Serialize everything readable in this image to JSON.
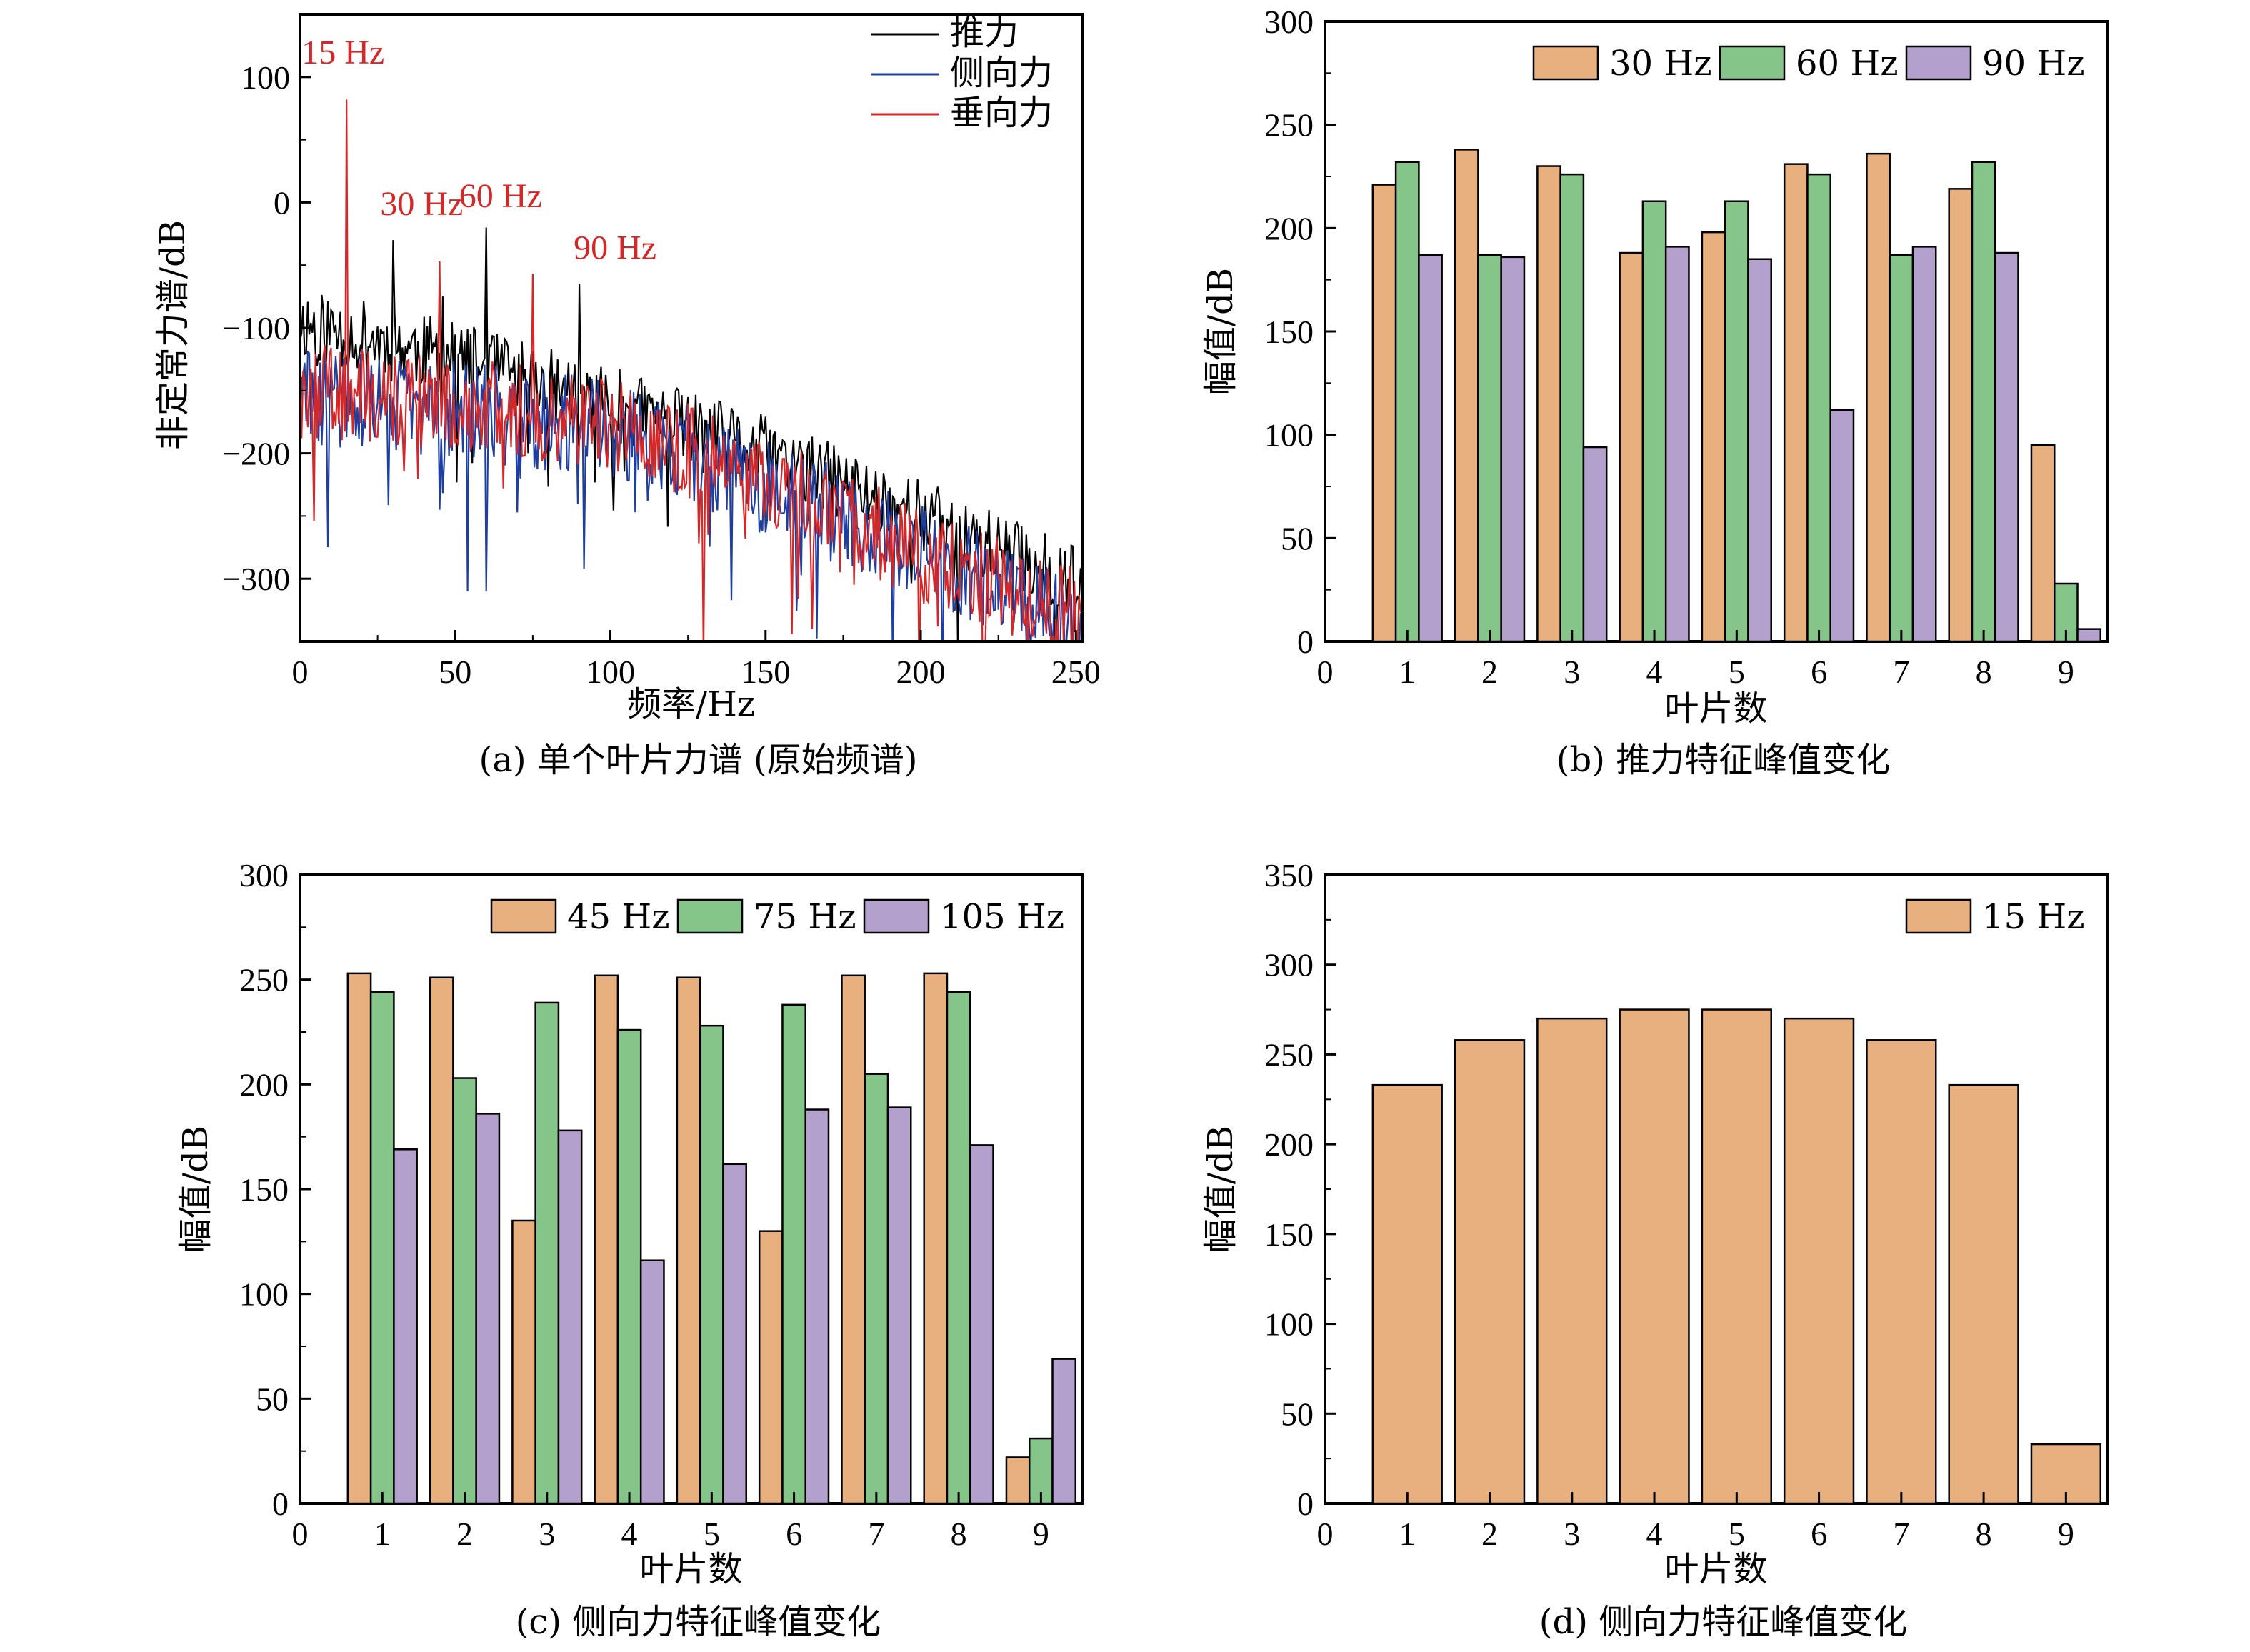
{
  "colors": {
    "bar_orange": "#E8B07E",
    "bar_green": "#86C58A",
    "bar_purple": "#B3A0CD",
    "line_black": "#000000",
    "line_blue": "#1F3FA0",
    "line_red": "#D62728",
    "annotation_red": "#D62728"
  },
  "chart_data": [
    {
      "type": "line",
      "caption": "(a) 单个叶片力谱 (原始频谱)",
      "xlabel": "频率/Hz",
      "ylabel": "非定常力谱/dB",
      "xlim": [
        0,
        252
      ],
      "ylim": [
        -350,
        150
      ],
      "xticks": [
        0,
        50,
        100,
        150,
        200,
        250
      ],
      "yticks": [
        100,
        0,
        -100,
        -200,
        -300
      ],
      "ytick_labels": [
        "100",
        "0",
        "−100",
        "−200",
        "−300"
      ],
      "legend_position": "top-right",
      "annotations": [
        {
          "text": "15 Hz",
          "x": 15,
          "y": 105
        },
        {
          "text": "30 Hz",
          "x": 30,
          "y": -10
        },
        {
          "text": "60 Hz",
          "x": 60,
          "y": -5
        },
        {
          "text": "90 Hz",
          "x": 90,
          "y": -45
        }
      ],
      "series": [
        {
          "name": "推力",
          "color": "#000000",
          "base": [
            [
              0,
              -95
            ],
            [
              50,
              -125
            ],
            [
              100,
              -160
            ],
            [
              150,
              -200
            ],
            [
              200,
              -250
            ],
            [
              252,
              -305
            ]
          ],
          "noise": 30,
          "seed": 11,
          "peaks": [
            [
              30,
              -30
            ],
            [
              60,
              -20
            ],
            [
              90,
              -65
            ],
            [
              46,
              -75
            ]
          ]
        },
        {
          "name": "侧向力",
          "color": "#1F3FA0",
          "base": [
            [
              0,
              -155
            ],
            [
              50,
              -165
            ],
            [
              100,
              -180
            ],
            [
              150,
              -225
            ],
            [
              200,
              -280
            ],
            [
              252,
              -330
            ]
          ],
          "noise": 40,
          "seed": 29,
          "peaks": [
            [
              54,
              -310
            ],
            [
              60,
              -310
            ],
            [
              45,
              -245
            ]
          ]
        },
        {
          "name": "垂向力",
          "color": "#D62728",
          "base": [
            [
              0,
              -150
            ],
            [
              50,
              -160
            ],
            [
              100,
              -175
            ],
            [
              150,
              -220
            ],
            [
              200,
              -280
            ],
            [
              252,
              -330
            ]
          ],
          "noise": 38,
          "seed": 47,
          "peaks": [
            [
              15,
              82
            ],
            [
              45,
              -47
            ],
            [
              75,
              -57
            ],
            [
              130,
              -360
            ],
            [
              165,
              -340
            ]
          ]
        }
      ]
    },
    {
      "type": "bar",
      "caption": "(b) 推力特征峰值变化",
      "xlabel": "叶片数",
      "ylabel": "幅值/dB",
      "categories": [
        "1",
        "2",
        "3",
        "4",
        "5",
        "6",
        "7",
        "8",
        "9"
      ],
      "xticks": [
        "0",
        "1",
        "2",
        "3",
        "4",
        "5",
        "6",
        "7",
        "8",
        "9"
      ],
      "ylim": [
        0,
        300
      ],
      "yticks": [
        0,
        50,
        100,
        150,
        200,
        250,
        300
      ],
      "legend_position": "top-right",
      "series": [
        {
          "name": "30 Hz",
          "color": "#E8B07E",
          "values": [
            221,
            238,
            230,
            188,
            198,
            231,
            236,
            219,
            95
          ]
        },
        {
          "name": "60 Hz",
          "color": "#86C58A",
          "values": [
            232,
            187,
            226,
            213,
            213,
            226,
            187,
            232,
            28
          ]
        },
        {
          "name": "90 Hz",
          "color": "#B3A0CD",
          "values": [
            187,
            186,
            94,
            191,
            185,
            112,
            191,
            188,
            6
          ]
        }
      ]
    },
    {
      "type": "bar",
      "caption": "(c) 侧向力特征峰值变化",
      "xlabel": "叶片数",
      "ylabel": "幅值/dB",
      "categories": [
        "1",
        "2",
        "3",
        "4",
        "5",
        "6",
        "7",
        "8",
        "9"
      ],
      "xticks": [
        "0",
        "1",
        "2",
        "3",
        "4",
        "5",
        "6",
        "7",
        "8",
        "9"
      ],
      "ylim": [
        0,
        300
      ],
      "yticks": [
        0,
        50,
        100,
        150,
        200,
        250,
        300
      ],
      "legend_position": "top-right",
      "series": [
        {
          "name": "45 Hz",
          "color": "#E8B07E",
          "values": [
            253,
            251,
            135,
            252,
            251,
            130,
            252,
            253,
            22
          ]
        },
        {
          "name": "75 Hz",
          "color": "#86C58A",
          "values": [
            244,
            203,
            239,
            226,
            228,
            238,
            205,
            244,
            31
          ]
        },
        {
          "name": "105 Hz",
          "color": "#B3A0CD",
          "values": [
            169,
            186,
            178,
            116,
            162,
            188,
            189,
            171,
            69
          ]
        }
      ]
    },
    {
      "type": "bar",
      "caption": "(d) 侧向力特征峰值变化",
      "xlabel": "叶片数",
      "ylabel": "幅值/dB",
      "categories": [
        "1",
        "2",
        "3",
        "4",
        "5",
        "6",
        "7",
        "8",
        "9"
      ],
      "xticks": [
        "0",
        "1",
        "2",
        "3",
        "4",
        "5",
        "6",
        "7",
        "8",
        "9"
      ],
      "ylim": [
        0,
        350
      ],
      "yticks": [
        0,
        50,
        100,
        150,
        200,
        250,
        300,
        350
      ],
      "legend_position": "top-right",
      "series": [
        {
          "name": "15 Hz",
          "color": "#E8B07E",
          "values": [
            233,
            258,
            270,
            275,
            275,
            270,
            258,
            233,
            33
          ]
        }
      ]
    }
  ]
}
